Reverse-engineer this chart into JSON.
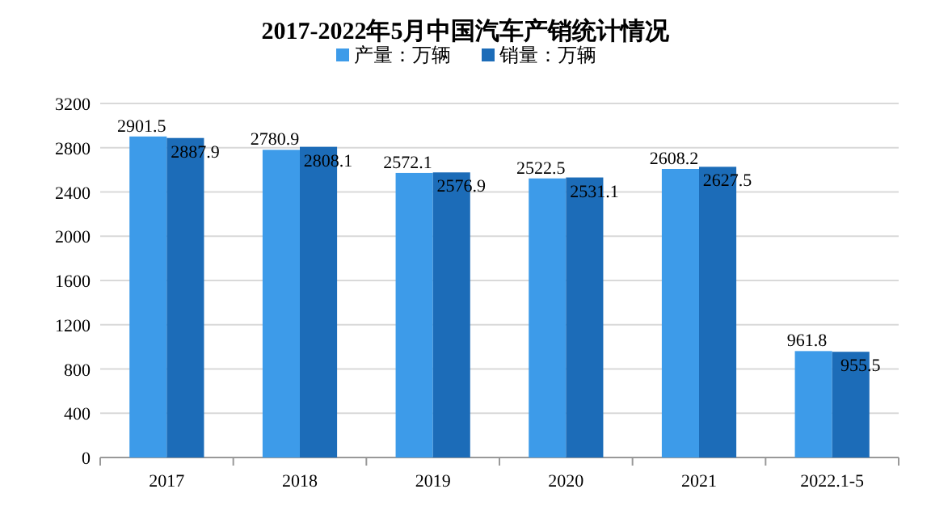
{
  "chart_data": {
    "type": "bar",
    "title": "2017-2022年5月中国汽车产销统计情况",
    "categories": [
      "2017",
      "2018",
      "2019",
      "2020",
      "2021",
      "2022.1-5"
    ],
    "series": [
      {
        "name": "产量：万辆",
        "color": "#3d9be9",
        "values": [
          2901.5,
          2780.9,
          2572.1,
          2522.5,
          2608.2,
          961.8
        ]
      },
      {
        "name": "销量：万辆",
        "color": "#1c6cb8",
        "values": [
          2887.9,
          2808.1,
          2576.9,
          2531.1,
          2627.5,
          955.5
        ]
      }
    ],
    "ylim": [
      0,
      3200
    ],
    "yticks": [
      0,
      400,
      800,
      1200,
      1600,
      2000,
      2400,
      2800,
      3200
    ],
    "grid": "y",
    "legend": "top",
    "data_labels": true
  }
}
